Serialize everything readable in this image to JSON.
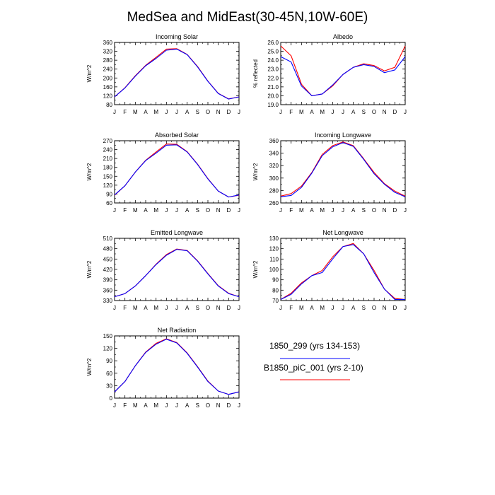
{
  "figure": {
    "title": "MedSea and MidEast(30-45N,10W-60E)"
  },
  "legend": {
    "entries": [
      {
        "label": "1850_299 (yrs 134-153)",
        "color": "#0000ff"
      },
      {
        "label": "B1850_piC_001 (yrs 2-10)",
        "color": "#ff0000"
      }
    ]
  },
  "chart_data": [
    {
      "type": "line",
      "title": "Incoming Solar",
      "ylabel": "W/m^2",
      "categories": [
        "J",
        "F",
        "M",
        "A",
        "M",
        "J",
        "J",
        "A",
        "S",
        "O",
        "N",
        "D",
        "J"
      ],
      "ylim": [
        80,
        360
      ],
      "yticks": [
        "80",
        "120",
        "160",
        "200",
        "240",
        "280",
        "320",
        "360"
      ],
      "series": [
        {
          "name": "1850_299 (yrs 134-153)",
          "color": "#0000ff",
          "values": [
            115,
            155,
            208,
            255,
            288,
            325,
            330,
            305,
            250,
            185,
            130,
            105,
            115
          ]
        },
        {
          "name": "B1850_piC_001 (yrs 2-10)",
          "color": "#ff0000",
          "values": [
            115,
            156,
            210,
            257,
            293,
            330,
            332,
            306,
            252,
            186,
            131,
            106,
            115
          ]
        }
      ]
    },
    {
      "type": "line",
      "title": "Albedo",
      "ylabel": "% reflected",
      "categories": [
        "J",
        "F",
        "M",
        "A",
        "M",
        "J",
        "J",
        "A",
        "S",
        "O",
        "N",
        "D",
        "J"
      ],
      "ylim": [
        19.0,
        26.0
      ],
      "yticks": [
        "19.0",
        "20.0",
        "21.0",
        "22.0",
        "23.0",
        "24.0",
        "25.0",
        "26.0"
      ],
      "series": [
        {
          "name": "1850_299 (yrs 134-153)",
          "color": "#0000ff",
          "values": [
            24.4,
            23.8,
            21.1,
            20.0,
            20.2,
            21.2,
            22.4,
            23.2,
            23.5,
            23.3,
            22.6,
            22.9,
            24.4
          ]
        },
        {
          "name": "B1850_piC_001 (yrs 2-10)",
          "color": "#ff0000",
          "values": [
            25.6,
            24.5,
            21.3,
            20.0,
            20.2,
            21.1,
            22.4,
            23.2,
            23.6,
            23.4,
            22.8,
            23.2,
            25.6
          ]
        }
      ]
    },
    {
      "type": "line",
      "title": "Absorbed Solar",
      "ylabel": "W/m^2",
      "categories": [
        "J",
        "F",
        "M",
        "A",
        "M",
        "J",
        "J",
        "A",
        "S",
        "O",
        "N",
        "D",
        "J"
      ],
      "ylim": [
        60,
        270
      ],
      "yticks": [
        "60",
        "90",
        "120",
        "150",
        "180",
        "210",
        "240",
        "270"
      ],
      "series": [
        {
          "name": "1850_299 (yrs 134-153)",
          "color": "#0000ff",
          "values": [
            87,
            118,
            164,
            203,
            228,
            255,
            256,
            232,
            190,
            141,
            100,
            80,
            87
          ]
        },
        {
          "name": "B1850_piC_001 (yrs 2-10)",
          "color": "#ff0000",
          "values": [
            86,
            118,
            164,
            204,
            232,
            259,
            258,
            233,
            191,
            142,
            100,
            80,
            86
          ]
        }
      ]
    },
    {
      "type": "line",
      "title": "Incoming Longwave",
      "ylabel": "W/m^2",
      "categories": [
        "J",
        "F",
        "M",
        "A",
        "M",
        "J",
        "J",
        "A",
        "S",
        "O",
        "N",
        "D",
        "J"
      ],
      "ylim": [
        260,
        360
      ],
      "yticks": [
        "260",
        "280",
        "300",
        "320",
        "340",
        "360"
      ],
      "series": [
        {
          "name": "1850_299 (yrs 134-153)",
          "color": "#0000ff",
          "values": [
            270,
            272,
            285,
            308,
            336,
            350,
            357,
            351,
            330,
            307,
            290,
            277,
            270
          ]
        },
        {
          "name": "B1850_piC_001 (yrs 2-10)",
          "color": "#ff0000",
          "values": [
            271,
            275,
            287,
            309,
            338,
            352,
            358,
            352,
            331,
            309,
            291,
            279,
            271
          ]
        }
      ]
    },
    {
      "type": "line",
      "title": "Emitted Longwave",
      "ylabel": "W/m^2",
      "categories": [
        "J",
        "F",
        "M",
        "A",
        "M",
        "J",
        "J",
        "A",
        "S",
        "O",
        "N",
        "D",
        "J"
      ],
      "ylim": [
        330,
        510
      ],
      "yticks": [
        "330",
        "360",
        "390",
        "420",
        "450",
        "480",
        "510"
      ],
      "series": [
        {
          "name": "1850_299 (yrs 134-153)",
          "color": "#0000ff",
          "values": [
            341,
            350,
            372,
            402,
            434,
            461,
            478,
            474,
            444,
            407,
            372,
            350,
            341
          ]
        },
        {
          "name": "B1850_piC_001 (yrs 2-10)",
          "color": "#ff0000",
          "values": [
            341,
            350,
            372,
            402,
            435,
            463,
            479,
            475,
            445,
            408,
            373,
            351,
            341
          ]
        }
      ]
    },
    {
      "type": "line",
      "title": "Net Longwave",
      "ylabel": "W/m^2",
      "categories": [
        "J",
        "F",
        "M",
        "A",
        "M",
        "J",
        "J",
        "A",
        "S",
        "O",
        "N",
        "D",
        "J"
      ],
      "ylim": [
        70,
        130
      ],
      "yticks": [
        "70",
        "80",
        "90",
        "100",
        "110",
        "120",
        "130"
      ],
      "series": [
        {
          "name": "1850_299 (yrs 134-153)",
          "color": "#0000ff",
          "values": [
            71,
            76,
            86,
            94,
            97,
            110,
            122,
            124,
            115,
            97,
            81,
            71,
            71
          ]
        },
        {
          "name": "B1850_piC_001 (yrs 2-10)",
          "color": "#ff0000",
          "values": [
            71,
            77,
            87,
            94,
            99,
            112,
            122,
            125,
            115,
            99,
            81,
            72,
            71
          ]
        }
      ]
    },
    {
      "type": "line",
      "title": "Net Radiation",
      "ylabel": "W/m^2",
      "categories": [
        "J",
        "F",
        "M",
        "A",
        "M",
        "J",
        "J",
        "A",
        "S",
        "O",
        "N",
        "D",
        "J"
      ],
      "ylim": [
        0,
        150
      ],
      "yticks": [
        "0",
        "30",
        "60",
        "90",
        "120",
        "150"
      ],
      "series": [
        {
          "name": "1850_299 (yrs 134-153)",
          "color": "#0000ff",
          "values": [
            15,
            40,
            78,
            110,
            130,
            142,
            133,
            108,
            75,
            40,
            17,
            9,
            15
          ]
        },
        {
          "name": "B1850_piC_001 (yrs 2-10)",
          "color": "#ff0000",
          "values": [
            15,
            40,
            78,
            111,
            132,
            143,
            134,
            109,
            76,
            41,
            17,
            9,
            15
          ]
        }
      ]
    }
  ]
}
